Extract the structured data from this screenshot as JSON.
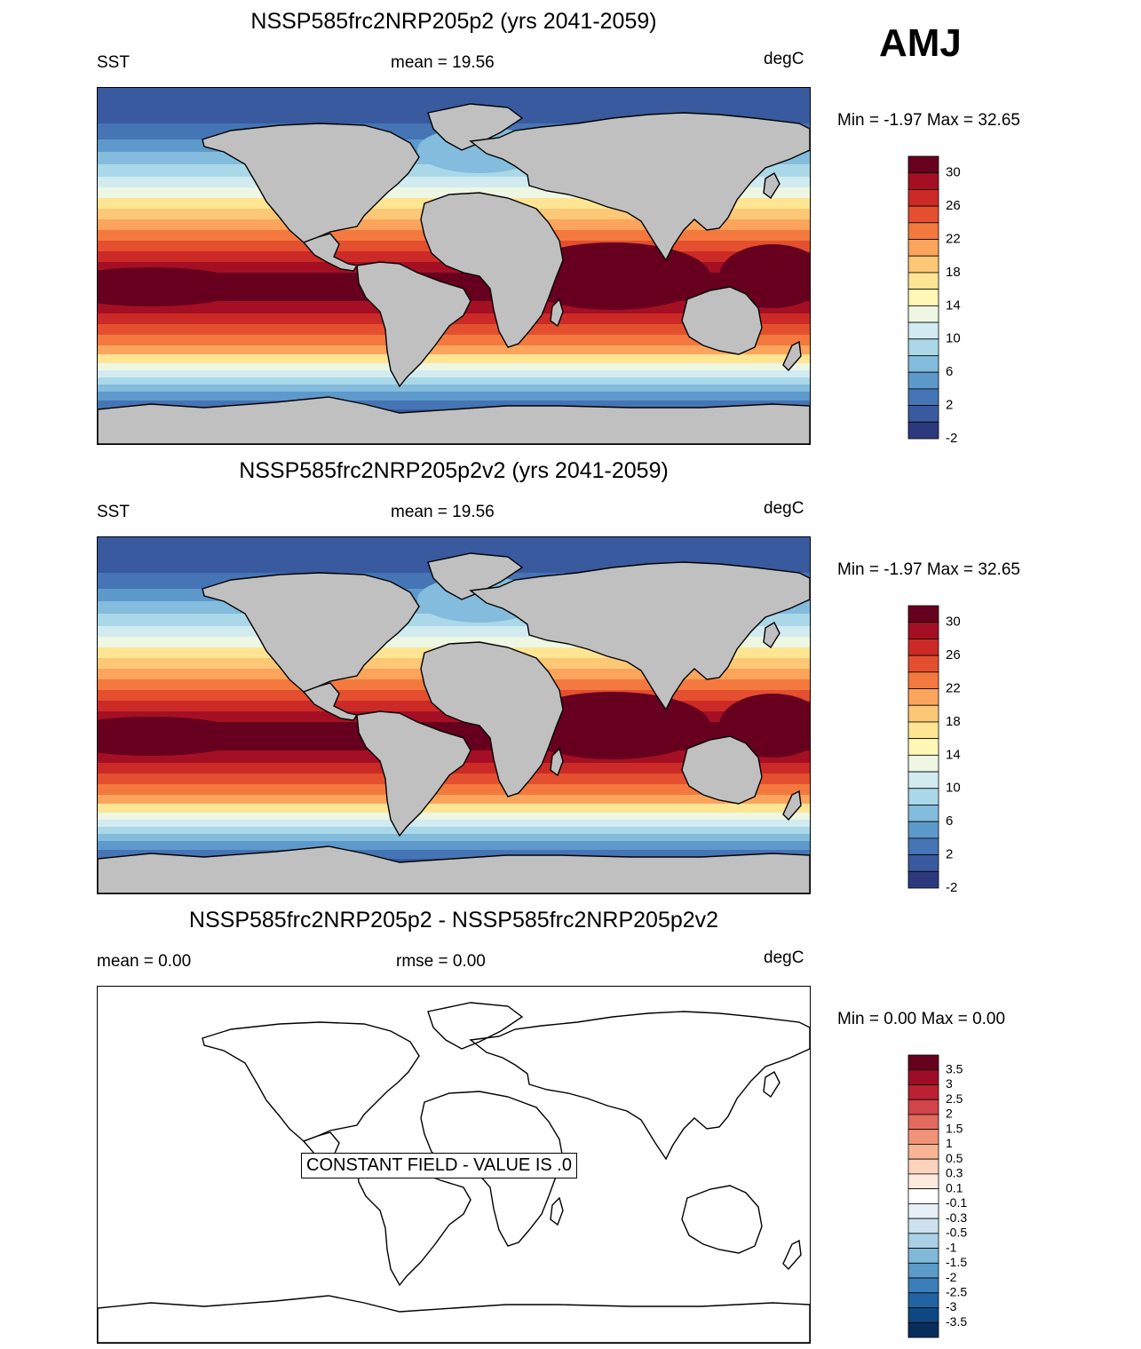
{
  "season_label": "AMJ",
  "panels": [
    {
      "title": "NSSP585frc2NRP205p2 (yrs 2041-2059)",
      "left_label": "SST",
      "center_label": "mean =  19.56",
      "units": "degC",
      "minmax": "Min =  -1.97 Max =  32.65"
    },
    {
      "title": "NSSP585frc2NRP205p2v2 (yrs 2041-2059)",
      "left_label": "SST",
      "center_label": "mean =  19.56",
      "units": "degC",
      "minmax": "Min =  -1.97 Max =  32.65"
    },
    {
      "title": "NSSP585frc2NRP205p2 - NSSP585frc2NRP205p2v2",
      "left_label": "mean =   0.00",
      "center_label": "rmse =   0.00",
      "units": "degC",
      "minmax": "Min =   0.00 Max =   0.00",
      "constant_field_note": "CONSTANT FIELD - VALUE IS .0"
    }
  ],
  "sst_colorbar": {
    "labels": [
      "30",
      "26",
      "22",
      "18",
      "14",
      "10",
      "6",
      "2",
      "-2"
    ],
    "colors": [
      "#67001f",
      "#a50f24",
      "#cc2a27",
      "#e4502f",
      "#f4793e",
      "#fba55c",
      "#fdc876",
      "#fee594",
      "#fff7b6",
      "#edf7e3",
      "#d2ebf1",
      "#aad8e8",
      "#83bcdc",
      "#5e99cc",
      "#4575b4",
      "#3a5a9f",
      "#2c3a7d"
    ]
  },
  "diff_colorbar": {
    "labels": [
      "3.5",
      "3",
      "2.5",
      "2",
      "1.5",
      "1",
      "0.5",
      "0.3",
      "0.1",
      "-0.1",
      "-0.3",
      "-0.5",
      "-1",
      "-1.5",
      "-2",
      "-2.5",
      "-3",
      "-3.5"
    ],
    "colors": [
      "#67001f",
      "#9d0d27",
      "#bb2133",
      "#d0444a",
      "#e26a5f",
      "#f09378",
      "#f7b596",
      "#fbd3bd",
      "#fdeadf",
      "#ffffff",
      "#e6f0f6",
      "#cde2ee",
      "#abd0e4",
      "#80b8d8",
      "#5a9bc9",
      "#3b7eb9",
      "#2163a3",
      "#0d4883",
      "#062d5c"
    ]
  },
  "colors": {
    "land": "#c0c0c0",
    "coastline": "#000000"
  }
}
